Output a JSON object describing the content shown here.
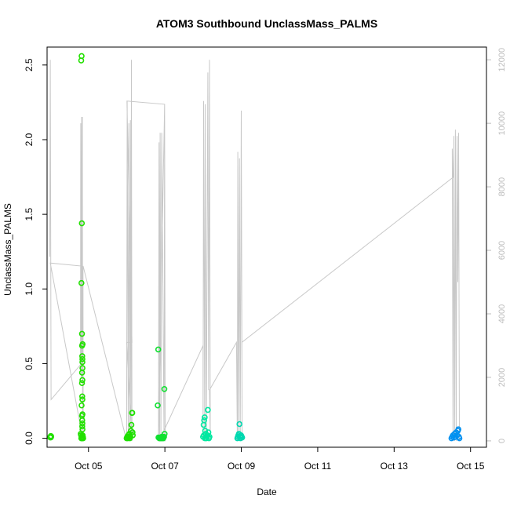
{
  "chart_data": {
    "type": "scatter",
    "title": "ATOM3 Southbound UnclassMass_PALMS",
    "xlabel": "Date",
    "ylabel": "UnclassMass_PALMS",
    "x_ticks": [
      "Oct 05",
      "Oct 07",
      "Oct 09",
      "Oct 11",
      "Oct 13",
      "Oct 15"
    ],
    "y_ticks": [
      "0.0",
      "0.5",
      "1.0",
      "1.5",
      "2.0",
      "2.5"
    ],
    "y2_ticks": [
      "0",
      "2000",
      "4000",
      "6000",
      "8000",
      "10000",
      "12000"
    ],
    "xlim": [
      "2016-10-03T22:00",
      "2016-10-15T10:00"
    ],
    "ylim": [
      -0.06,
      2.62
    ],
    "y2lim": [
      -200,
      12400
    ],
    "colors": {
      "series_1": "#22e000",
      "series_2": "#1ee000",
      "series_3": "#10e030",
      "series_4": "#00e8a0",
      "series_5": "#00d8b0",
      "series_6": "#0090f0",
      "altitude": "#c8c8c8"
    },
    "series": [
      {
        "color_key": "series_1",
        "points": [
          [
            "2016-10-04T00:00",
            0.005
          ],
          [
            "2016-10-04T00:05",
            0.01
          ],
          [
            "2016-10-04T00:10",
            0.012
          ],
          [
            "2016-10-04T00:15",
            0.008
          ],
          [
            "2016-10-04T00:20",
            0.015
          ],
          [
            "2016-10-04T00:25",
            0.006
          ],
          [
            "2016-10-04T00:30",
            0.01
          ],
          [
            "2016-10-04T00:35",
            0.013
          ],
          [
            "2016-10-04T19:10",
            0.03
          ],
          [
            "2016-10-04T19:25",
            2.53
          ],
          [
            "2016-10-04T19:40",
            2.56
          ],
          [
            "2016-10-04T19:35",
            1.04
          ],
          [
            "2016-10-04T19:50",
            1.44
          ],
          [
            "2016-10-04T19:55",
            0.7
          ],
          [
            "2016-10-04T20:00",
            0.62
          ],
          [
            "2016-10-04T20:05",
            0.55
          ],
          [
            "2016-10-04T20:20",
            0.63
          ],
          [
            "2016-10-04T20:10",
            0.53
          ],
          [
            "2016-10-04T20:12",
            0.51
          ],
          [
            "2016-10-04T20:15",
            0.47
          ],
          [
            "2016-10-04T20:00",
            0.44
          ],
          [
            "2016-10-04T20:10",
            0.39
          ],
          [
            "2016-10-04T19:55",
            0.37
          ],
          [
            "2016-10-04T20:05",
            0.28
          ],
          [
            "2016-10-04T20:10",
            0.26
          ],
          [
            "2016-10-04T19:40",
            0.22
          ],
          [
            "2016-10-04T19:55",
            0.15
          ],
          [
            "2016-10-04T20:15",
            0.16
          ],
          [
            "2016-10-04T20:05",
            0.12
          ],
          [
            "2016-10-04T20:10",
            0.1
          ],
          [
            "2016-10-04T20:05",
            0.08
          ],
          [
            "2016-10-04T20:15",
            0.06
          ],
          [
            "2016-10-04T19:20",
            0.02
          ],
          [
            "2016-10-04T19:30",
            0.0
          ],
          [
            "2016-10-04T19:45",
            0.0
          ],
          [
            "2016-10-04T20:00",
            0.01
          ],
          [
            "2016-10-04T20:10",
            0.0
          ],
          [
            "2016-10-04T20:20",
            0.02
          ],
          [
            "2016-10-04T20:30",
            0.01
          ],
          [
            "2016-10-04T20:40",
            0.0
          ]
        ]
      },
      {
        "color_key": "series_2",
        "points": [
          [
            "2016-10-06T00:00",
            0.0
          ],
          [
            "2016-10-06T00:20",
            0.01
          ],
          [
            "2016-10-06T00:40",
            0.0
          ],
          [
            "2016-10-06T01:00",
            0.02
          ],
          [
            "2016-10-06T01:20",
            0.01
          ],
          [
            "2016-10-06T01:40",
            0.03
          ],
          [
            "2016-10-06T02:00",
            0.0
          ],
          [
            "2016-10-06T02:20",
            0.01
          ],
          [
            "2016-10-06T02:40",
            0.05
          ],
          [
            "2016-10-06T03:00",
            0.09
          ],
          [
            "2016-10-06T03:20",
            0.17
          ],
          [
            "2016-10-06T03:30",
            0.17
          ],
          [
            "2016-10-06T03:40",
            0.04
          ],
          [
            "2016-10-06T03:50",
            0.02
          ]
        ]
      },
      {
        "color_key": "series_3",
        "points": [
          [
            "2016-10-06T21:00",
            0.0
          ],
          [
            "2016-10-06T21:20",
            0.005
          ],
          [
            "2016-10-06T21:40",
            0.0
          ],
          [
            "2016-10-06T22:00",
            0.01
          ],
          [
            "2016-10-06T22:20",
            0.0
          ],
          [
            "2016-10-06T22:40",
            0.005
          ],
          [
            "2016-10-06T23:00",
            0.0
          ],
          [
            "2016-10-06T23:30",
            0.01
          ],
          [
            "2016-10-06T19:30",
            0.22
          ],
          [
            "2016-10-06T19:50",
            0.595
          ],
          [
            "2016-10-06T23:40",
            0.33
          ],
          [
            "2016-10-06T23:50",
            0.03
          ],
          [
            "2016-10-06T20:30",
            0.0
          ],
          [
            "2016-10-06T20:00",
            0.005
          ]
        ]
      },
      {
        "color_key": "series_4",
        "points": [
          [
            "2016-10-08T00:00",
            0.01
          ],
          [
            "2016-10-08T00:20",
            0.09
          ],
          [
            "2016-10-08T00:40",
            0.12
          ],
          [
            "2016-10-08T01:00",
            0.14
          ],
          [
            "2016-10-08T01:20",
            0.05
          ],
          [
            "2016-10-08T01:40",
            0.03
          ],
          [
            "2016-10-08T02:00",
            0.0
          ],
          [
            "2016-10-08T02:20",
            0.01
          ],
          [
            "2016-10-08T02:40",
            0.02
          ],
          [
            "2016-10-08T03:00",
            0.19
          ],
          [
            "2016-10-08T03:20",
            0.04
          ],
          [
            "2016-10-08T03:40",
            0.0
          ],
          [
            "2016-10-08T04:00",
            0.01
          ],
          [
            "2016-10-08T00:30",
            0.02
          ],
          [
            "2016-10-08T01:10",
            0.0
          ]
        ]
      },
      {
        "color_key": "series_5",
        "points": [
          [
            "2016-10-08T21:30",
            0.0
          ],
          [
            "2016-10-08T21:50",
            0.01
          ],
          [
            "2016-10-08T22:10",
            0.02
          ],
          [
            "2016-10-08T22:30",
            0.03
          ],
          [
            "2016-10-08T22:50",
            0.095
          ],
          [
            "2016-10-08T23:10",
            0.01
          ],
          [
            "2016-10-08T23:30",
            0.0
          ],
          [
            "2016-10-08T23:50",
            0.02
          ],
          [
            "2016-10-09T00:10",
            0.01
          ],
          [
            "2016-10-09T00:30",
            0.005
          ]
        ]
      },
      {
        "color_key": "series_6",
        "points": [
          [
            "2016-10-14T12:00",
            0.0
          ],
          [
            "2016-10-14T12:30",
            0.01
          ],
          [
            "2016-10-14T13:00",
            0.02
          ],
          [
            "2016-10-14T13:30",
            0.005
          ],
          [
            "2016-10-14T14:00",
            0.03
          ],
          [
            "2016-10-14T14:30",
            0.01
          ],
          [
            "2016-10-14T15:00",
            0.04
          ],
          [
            "2016-10-14T15:30",
            0.02
          ],
          [
            "2016-10-14T16:00",
            0.05
          ],
          [
            "2016-10-14T16:20",
            0.06
          ],
          [
            "2016-10-14T16:40",
            0.01
          ],
          [
            "2016-10-14T17:00",
            0.0
          ]
        ]
      }
    ],
    "altitude_series": {
      "color_key": "altitude",
      "axis": "right",
      "points": [
        [
          "2016-10-03T23:40",
          5800
        ],
        [
          "2016-10-04T00:00",
          12000
        ],
        [
          "2016-10-04T00:20",
          5800
        ],
        [
          "2016-10-04T00:30",
          1300
        ],
        [
          "2016-10-04T19:00",
          2400
        ],
        [
          "2016-10-04T19:10",
          10000
        ],
        [
          "2016-10-04T19:30",
          2000
        ],
        [
          "2016-10-04T19:45",
          10200
        ],
        [
          "2016-10-04T20:00",
          2000
        ],
        [
          "2016-10-04T20:10",
          10200
        ],
        [
          "2016-10-04T20:20",
          800
        ],
        [
          "2016-10-04T20:35",
          5500
        ],
        [
          "2016-10-04T20:40",
          0
        ],
        [
          "2016-10-04T00:00",
          5600
        ],
        [
          "2016-10-04T20:40",
          5500
        ],
        [
          "2016-10-06T00:00",
          0
        ],
        [
          "2016-10-06T00:20",
          10700
        ],
        [
          "2016-10-06T01:00",
          0
        ],
        [
          "2016-10-06T01:20",
          10000
        ],
        [
          "2016-10-06T02:00",
          0
        ],
        [
          "2016-10-06T02:20",
          10100
        ],
        [
          "2016-10-06T02:40",
          0
        ],
        [
          "2016-10-06T03:00",
          12000
        ],
        [
          "2016-10-06T03:20",
          0
        ],
        [
          "2016-10-06T00:00",
          3100
        ],
        [
          "2016-10-06T03:20",
          3100
        ],
        [
          "2016-10-06T00:10",
          10700
        ],
        [
          "2016-10-06T23:50",
          10600
        ],
        [
          "2016-10-06T20:00",
          0
        ],
        [
          "2016-10-06T20:20",
          9400
        ],
        [
          "2016-10-06T20:40",
          0
        ],
        [
          "2016-10-06T21:00",
          9700
        ],
        [
          "2016-10-06T21:30",
          0
        ],
        [
          "2016-10-06T22:00",
          9700
        ],
        [
          "2016-10-06T23:30",
          0
        ],
        [
          "2016-10-06T23:50",
          10600
        ],
        [
          "2016-10-07T00:10",
          0
        ],
        [
          "2016-10-06T20:30",
          0
        ],
        [
          "2016-10-08T00:00",
          3000
        ],
        [
          "2016-10-08T00:00",
          0
        ],
        [
          "2016-10-08T00:20",
          10700
        ],
        [
          "2016-10-08T01:00",
          0
        ],
        [
          "2016-10-08T01:20",
          10600
        ],
        [
          "2016-10-08T02:00",
          0
        ],
        [
          "2016-10-08T03:00",
          11600
        ],
        [
          "2016-10-08T03:30",
          1600
        ],
        [
          "2016-10-08T04:00",
          12000
        ],
        [
          "2016-10-08T04:30",
          0
        ],
        [
          "2016-10-08T04:00",
          1600
        ],
        [
          "2016-10-08T21:00",
          3100
        ],
        [
          "2016-10-08T21:30",
          0
        ],
        [
          "2016-10-08T21:50",
          9100
        ],
        [
          "2016-10-08T22:20",
          0
        ],
        [
          "2016-10-08T22:50",
          8900
        ],
        [
          "2016-10-08T23:20",
          0
        ],
        [
          "2016-10-09T00:00",
          10400
        ],
        [
          "2016-10-09T00:30",
          0
        ],
        [
          "2016-10-09T00:20",
          3100
        ],
        [
          "2016-10-14T13:00",
          8300
        ],
        [
          "2016-10-14T12:30",
          9200
        ],
        [
          "2016-10-14T13:00",
          0
        ],
        [
          "2016-10-14T13:30",
          9600
        ],
        [
          "2016-10-14T14:00",
          0
        ],
        [
          "2016-10-14T14:30",
          9800
        ],
        [
          "2016-10-14T15:00",
          0
        ],
        [
          "2016-10-14T15:30",
          9600
        ],
        [
          "2016-10-14T16:00",
          5000
        ],
        [
          "2016-10-14T16:30",
          9700
        ],
        [
          "2016-10-14T17:00",
          0
        ]
      ]
    }
  }
}
